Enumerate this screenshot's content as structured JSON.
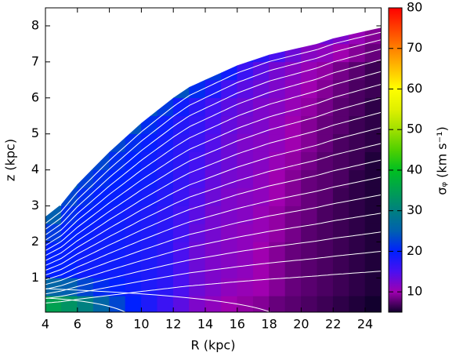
{
  "chart_data": {
    "type": "heatmap",
    "x_label": "R (kpc)",
    "y_label": "z (kpc)",
    "colorbar_label": "σᵩ (km s⁻¹)",
    "xlim": [
      4,
      25
    ],
    "xticks": [
      4,
      6,
      8,
      10,
      12,
      14,
      16,
      18,
      20,
      22,
      24
    ],
    "ylim": [
      0.05,
      8.5
    ],
    "yticks": [
      1,
      2,
      3,
      4,
      5,
      6,
      7,
      8
    ],
    "clim": [
      5,
      80
    ],
    "cticks": [
      10,
      20,
      30,
      40,
      50,
      60,
      70,
      80
    ],
    "colorscale": [
      "#12002e",
      "#a000b0",
      "#4a10f0",
      "#0020ff",
      "#0060b0",
      "#008080",
      "#00a050",
      "#00c020",
      "#50d000",
      "#a0e000",
      "#e0f000",
      "#ffff00",
      "#ffc000",
      "#ff8000",
      "#ff4000",
      "#ff0000"
    ],
    "x": [
      4.5,
      5.5,
      6.5,
      7.5,
      8.5,
      9.5,
      10.5,
      11.5,
      12.5,
      13.5,
      14.5,
      15.5,
      16.5,
      17.5,
      18.5,
      19.5,
      20.5,
      21.5,
      22.5,
      23.5,
      24.5
    ],
    "y": [
      0.25,
      0.75,
      1.25,
      1.75,
      2.25,
      2.75,
      3.25,
      3.75,
      4.25,
      4.75,
      5.25,
      5.75,
      6.25,
      6.75,
      7.25,
      7.75
    ],
    "z": [
      [
        35,
        33,
        30,
        26,
        23,
        20,
        18,
        16,
        14,
        12,
        11,
        10,
        9.5,
        9,
        8,
        7.5,
        7,
        6.5,
        6,
        5.5,
        5
      ],
      [
        26,
        25,
        23,
        21,
        20,
        19,
        18,
        17,
        15,
        13,
        12,
        11,
        10.5,
        10,
        9,
        8,
        7.5,
        7,
        6.5,
        6,
        5.5
      ],
      [
        20,
        20,
        19,
        19,
        19,
        18.5,
        18,
        17,
        15,
        13,
        12,
        11.5,
        11,
        10,
        9,
        8,
        7.5,
        7,
        6.5,
        6,
        5.5
      ],
      [
        20,
        19.5,
        19,
        19,
        19,
        18.5,
        18,
        17,
        15,
        13,
        12,
        11.5,
        11,
        10,
        9,
        8,
        7.5,
        7,
        6.5,
        6,
        5.5
      ],
      [
        22,
        20,
        19.5,
        19,
        19,
        18.5,
        18,
        17,
        15.5,
        13.5,
        12.5,
        11.5,
        11,
        10.5,
        9.5,
        8.5,
        7.5,
        7,
        6.5,
        6,
        5.5
      ],
      [
        25,
        21,
        20,
        19.5,
        19,
        18.5,
        18,
        17,
        15.5,
        14,
        12.5,
        12,
        11.5,
        10.5,
        9.5,
        8.5,
        8,
        7,
        6.5,
        6,
        5.5
      ],
      [
        null,
        23,
        21,
        20,
        19.5,
        19,
        18.5,
        17.5,
        16,
        14.5,
        13,
        12,
        11.5,
        11,
        10,
        9,
        8,
        7.5,
        6.5,
        6,
        5.5
      ],
      [
        null,
        25,
        22.5,
        21,
        20,
        19.5,
        19,
        18,
        16.5,
        15,
        13.5,
        12.5,
        12,
        11,
        10,
        9,
        8,
        7.5,
        7,
        6,
        5.5
      ],
      [
        null,
        null,
        24,
        23,
        21,
        20,
        19,
        18,
        17,
        15.5,
        14,
        13,
        12,
        11.5,
        10.5,
        9.5,
        8.5,
        7.5,
        7,
        6.5,
        5.5
      ],
      [
        null,
        null,
        null,
        null,
        23,
        21,
        19.5,
        18.5,
        17,
        16,
        14.5,
        13,
        12,
        11.5,
        11,
        10,
        9,
        8,
        7,
        6.5,
        6
      ],
      [
        null,
        null,
        null,
        null,
        null,
        24,
        21,
        19,
        17.5,
        16.5,
        15,
        13.5,
        12.5,
        12,
        11,
        10,
        9,
        8,
        7.5,
        6.5,
        6
      ],
      [
        null,
        null,
        null,
        null,
        null,
        null,
        24,
        22,
        19,
        17,
        15.5,
        14,
        13,
        12,
        11.5,
        10.5,
        9.5,
        8.5,
        7.5,
        7,
        6
      ],
      [
        null,
        null,
        null,
        null,
        null,
        null,
        null,
        null,
        24,
        21,
        18,
        15.5,
        14,
        13,
        12,
        11,
        10,
        9,
        8,
        7,
        6.5
      ],
      [
        null,
        null,
        null,
        null,
        null,
        null,
        null,
        null,
        null,
        null,
        22,
        19,
        16,
        14,
        12.5,
        11.5,
        10.5,
        9.5,
        8.5,
        7.5,
        6.5
      ],
      [
        null,
        null,
        null,
        null,
        null,
        null,
        null,
        null,
        null,
        null,
        null,
        null,
        19,
        17,
        15,
        13,
        11.5,
        11,
        10,
        9,
        8
      ],
      [
        null,
        null,
        null,
        null,
        null,
        null,
        null,
        null,
        null,
        null,
        null,
        null,
        null,
        null,
        null,
        null,
        null,
        13,
        12,
        10.5,
        9
      ]
    ]
  }
}
